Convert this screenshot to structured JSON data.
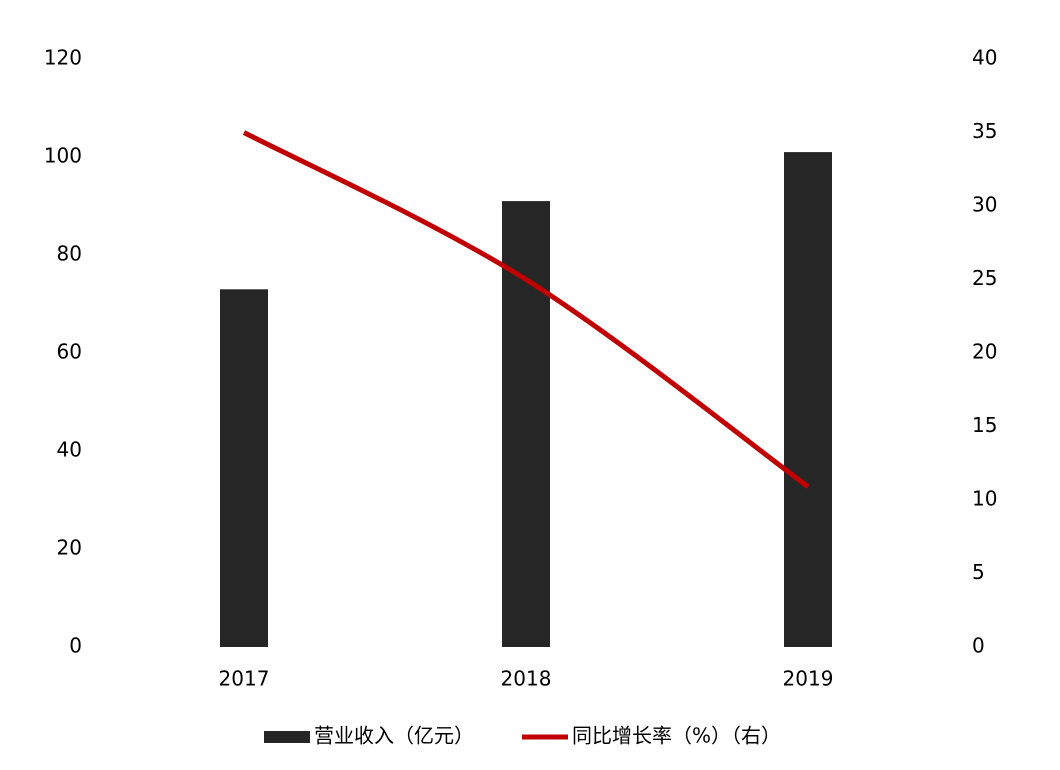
{
  "chart_data": {
    "type": "bar",
    "categories": [
      "2017",
      "2018",
      "2019"
    ],
    "series": [
      {
        "name": "营业收入（亿元）",
        "type": "bar",
        "color": "#262626",
        "values": [
          73,
          91,
          101
        ]
      },
      {
        "name": "同比增长率（%）（右）",
        "type": "line",
        "axis": "y2",
        "color": "#c00000",
        "values": [
          35,
          25,
          10.9
        ]
      }
    ],
    "ylim": [
      0,
      120
    ],
    "yticks": [
      0,
      20,
      40,
      60,
      80,
      100,
      120
    ],
    "y2lim": [
      0,
      40
    ],
    "y2ticks": [
      0,
      5,
      10,
      15,
      20,
      25,
      30,
      35,
      40
    ],
    "grid": false,
    "legend": "bottom"
  }
}
